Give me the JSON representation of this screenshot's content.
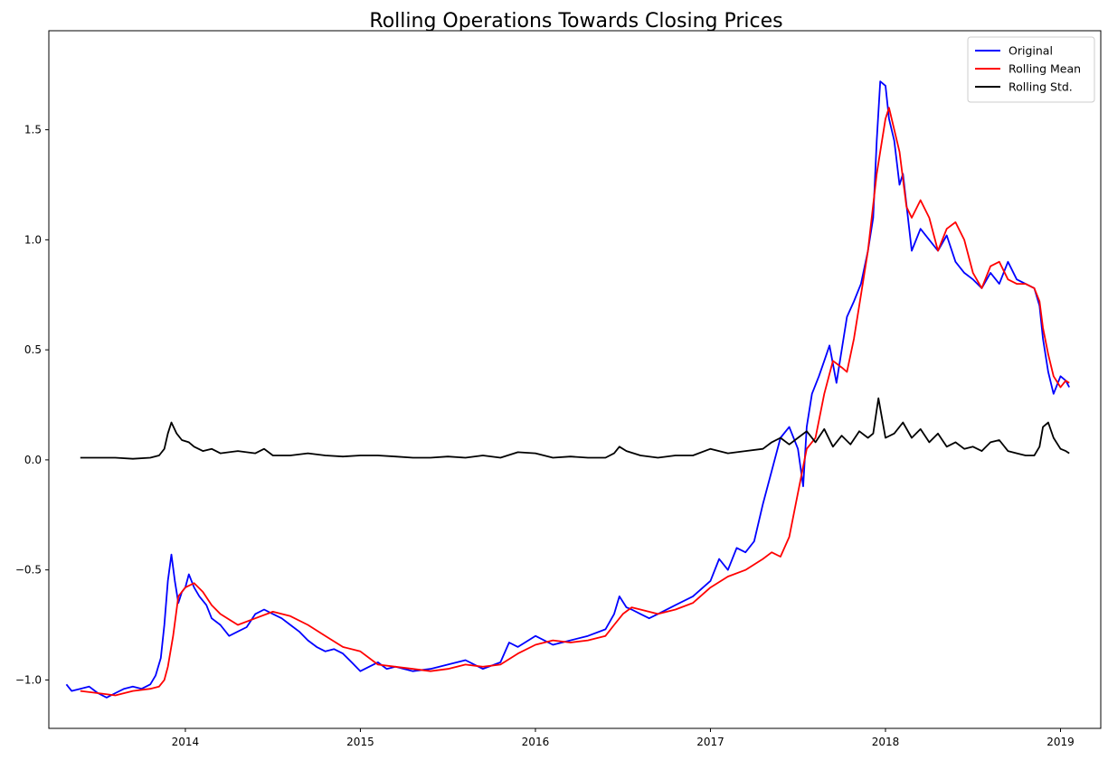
{
  "chart_data": {
    "type": "line",
    "title": "Rolling Operations Towards Closing Prices",
    "xlabel": "",
    "ylabel": "",
    "xlim": [
      2013.22,
      2019.23
    ],
    "ylim": [
      -1.22,
      1.95
    ],
    "x_ticks": [
      2014,
      2015,
      2016,
      2017,
      2018,
      2019
    ],
    "x_tick_labels": [
      "2014",
      "2015",
      "2016",
      "2017",
      "2018",
      "2019"
    ],
    "y_ticks": [
      -1.0,
      -0.5,
      0.0,
      0.5,
      1.0,
      1.5
    ],
    "y_tick_labels": [
      "−1.0",
      "−0.5",
      "0.0",
      "0.5",
      "1.0",
      "1.5"
    ],
    "grid": false,
    "legend": {
      "placement": "top-right"
    },
    "series": [
      {
        "name": "Original",
        "color": "#0000ff",
        "x": [
          2013.32,
          2013.35,
          2013.4,
          2013.45,
          2013.5,
          2013.55,
          2013.6,
          2013.65,
          2013.7,
          2013.75,
          2013.8,
          2013.83,
          2013.86,
          2013.88,
          2013.9,
          2013.92,
          2013.94,
          2013.96,
          2013.98,
          2014.0,
          2014.02,
          2014.05,
          2014.08,
          2014.12,
          2014.15,
          2014.2,
          2014.25,
          2014.3,
          2014.35,
          2014.4,
          2014.45,
          2014.5,
          2014.55,
          2014.6,
          2014.65,
          2014.7,
          2014.75,
          2014.8,
          2014.85,
          2014.9,
          2014.95,
          2015.0,
          2015.05,
          2015.1,
          2015.15,
          2015.2,
          2015.3,
          2015.4,
          2015.5,
          2015.6,
          2015.7,
          2015.8,
          2015.85,
          2015.9,
          2016.0,
          2016.1,
          2016.2,
          2016.3,
          2016.4,
          2016.45,
          2016.48,
          2016.52,
          2016.55,
          2016.6,
          2016.65,
          2016.7,
          2016.8,
          2016.9,
          2017.0,
          2017.05,
          2017.1,
          2017.15,
          2017.2,
          2017.25,
          2017.3,
          2017.35,
          2017.4,
          2017.45,
          2017.5,
          2017.53,
          2017.55,
          2017.58,
          2017.62,
          2017.65,
          2017.68,
          2017.72,
          2017.75,
          2017.78,
          2017.82,
          2017.86,
          2017.9,
          2017.93,
          2017.95,
          2017.97,
          2018.0,
          2018.02,
          2018.05,
          2018.08,
          2018.1,
          2018.15,
          2018.2,
          2018.25,
          2018.3,
          2018.35,
          2018.4,
          2018.45,
          2018.5,
          2018.55,
          2018.6,
          2018.65,
          2018.7,
          2018.75,
          2018.8,
          2018.85,
          2018.88,
          2018.9,
          2018.93,
          2018.96,
          2019.0,
          2019.03,
          2019.05
        ],
        "y": [
          -1.02,
          -1.05,
          -1.04,
          -1.03,
          -1.06,
          -1.08,
          -1.06,
          -1.04,
          -1.03,
          -1.04,
          -1.02,
          -0.98,
          -0.9,
          -0.75,
          -0.55,
          -0.43,
          -0.55,
          -0.65,
          -0.6,
          -0.58,
          -0.52,
          -0.58,
          -0.62,
          -0.66,
          -0.72,
          -0.75,
          -0.8,
          -0.78,
          -0.76,
          -0.7,
          -0.68,
          -0.7,
          -0.72,
          -0.75,
          -0.78,
          -0.82,
          -0.85,
          -0.87,
          -0.86,
          -0.88,
          -0.92,
          -0.96,
          -0.94,
          -0.92,
          -0.95,
          -0.94,
          -0.96,
          -0.95,
          -0.93,
          -0.91,
          -0.95,
          -0.92,
          -0.83,
          -0.85,
          -0.8,
          -0.84,
          -0.82,
          -0.8,
          -0.77,
          -0.7,
          -0.62,
          -0.67,
          -0.68,
          -0.7,
          -0.72,
          -0.7,
          -0.66,
          -0.62,
          -0.55,
          -0.45,
          -0.5,
          -0.4,
          -0.42,
          -0.37,
          -0.2,
          -0.05,
          0.1,
          0.15,
          0.05,
          -0.12,
          0.15,
          0.3,
          0.38,
          0.45,
          0.52,
          0.35,
          0.5,
          0.65,
          0.72,
          0.8,
          0.95,
          1.1,
          1.45,
          1.72,
          1.7,
          1.55,
          1.45,
          1.25,
          1.3,
          0.95,
          1.05,
          1.0,
          0.95,
          1.02,
          0.9,
          0.85,
          0.82,
          0.78,
          0.85,
          0.8,
          0.9,
          0.82,
          0.8,
          0.78,
          0.7,
          0.55,
          0.4,
          0.3,
          0.38,
          0.36,
          0.33
        ],
        "stroke_width": 1.8
      },
      {
        "name": "Rolling Mean",
        "color": "#ff0000",
        "x": [
          2013.4,
          2013.5,
          2013.6,
          2013.7,
          2013.8,
          2013.85,
          2013.88,
          2013.9,
          2013.93,
          2013.96,
          2014.0,
          2014.05,
          2014.1,
          2014.15,
          2014.2,
          2014.3,
          2014.4,
          2014.5,
          2014.6,
          2014.7,
          2014.8,
          2014.9,
          2015.0,
          2015.1,
          2015.2,
          2015.3,
          2015.4,
          2015.5,
          2015.6,
          2015.7,
          2015.8,
          2015.9,
          2016.0,
          2016.1,
          2016.2,
          2016.3,
          2016.4,
          2016.45,
          2016.5,
          2016.55,
          2016.6,
          2016.7,
          2016.8,
          2016.9,
          2017.0,
          2017.1,
          2017.2,
          2017.3,
          2017.35,
          2017.4,
          2017.45,
          2017.5,
          2017.55,
          2017.6,
          2017.65,
          2017.7,
          2017.75,
          2017.78,
          2017.82,
          2017.86,
          2017.9,
          2017.95,
          2018.0,
          2018.02,
          2018.05,
          2018.08,
          2018.12,
          2018.15,
          2018.2,
          2018.25,
          2018.3,
          2018.35,
          2018.4,
          2018.45,
          2018.5,
          2018.55,
          2018.6,
          2018.65,
          2018.7,
          2018.75,
          2018.8,
          2018.85,
          2018.88,
          2018.9,
          2018.93,
          2018.96,
          2019.0,
          2019.03,
          2019.05
        ],
        "y": [
          -1.05,
          -1.06,
          -1.07,
          -1.05,
          -1.04,
          -1.03,
          -1.0,
          -0.94,
          -0.8,
          -0.62,
          -0.58,
          -0.56,
          -0.6,
          -0.66,
          -0.7,
          -0.75,
          -0.72,
          -0.69,
          -0.71,
          -0.75,
          -0.8,
          -0.85,
          -0.87,
          -0.93,
          -0.94,
          -0.95,
          -0.96,
          -0.95,
          -0.93,
          -0.94,
          -0.93,
          -0.88,
          -0.84,
          -0.82,
          -0.83,
          -0.82,
          -0.8,
          -0.75,
          -0.7,
          -0.67,
          -0.68,
          -0.7,
          -0.68,
          -0.65,
          -0.58,
          -0.53,
          -0.5,
          -0.45,
          -0.42,
          -0.44,
          -0.35,
          -0.15,
          0.05,
          0.1,
          0.3,
          0.45,
          0.42,
          0.4,
          0.55,
          0.75,
          0.95,
          1.3,
          1.55,
          1.6,
          1.5,
          1.4,
          1.15,
          1.1,
          1.18,
          1.1,
          0.95,
          1.05,
          1.08,
          1.0,
          0.85,
          0.78,
          0.88,
          0.9,
          0.82,
          0.8,
          0.8,
          0.78,
          0.72,
          0.6,
          0.48,
          0.38,
          0.33,
          0.36,
          0.35
        ],
        "stroke_width": 1.8
      },
      {
        "name": "Rolling Std.",
        "color": "#000000",
        "x": [
          2013.4,
          2013.5,
          2013.6,
          2013.7,
          2013.8,
          2013.85,
          2013.88,
          2013.9,
          2013.92,
          2013.95,
          2013.98,
          2014.02,
          2014.05,
          2014.1,
          2014.15,
          2014.2,
          2014.3,
          2014.4,
          2014.45,
          2014.5,
          2014.6,
          2014.7,
          2014.8,
          2014.9,
          2015.0,
          2015.1,
          2015.2,
          2015.3,
          2015.4,
          2015.5,
          2015.6,
          2015.7,
          2015.8,
          2015.9,
          2016.0,
          2016.1,
          2016.2,
          2016.3,
          2016.4,
          2016.45,
          2016.48,
          2016.52,
          2016.6,
          2016.7,
          2016.8,
          2016.9,
          2017.0,
          2017.1,
          2017.2,
          2017.3,
          2017.35,
          2017.4,
          2017.45,
          2017.5,
          2017.55,
          2017.6,
          2017.65,
          2017.7,
          2017.75,
          2017.8,
          2017.85,
          2017.9,
          2017.93,
          2017.96,
          2018.0,
          2018.05,
          2018.1,
          2018.15,
          2018.2,
          2018.25,
          2018.3,
          2018.35,
          2018.4,
          2018.45,
          2018.5,
          2018.55,
          2018.6,
          2018.65,
          2018.7,
          2018.75,
          2018.8,
          2018.85,
          2018.88,
          2018.9,
          2018.93,
          2018.96,
          2019.0,
          2019.03,
          2019.05
        ],
        "y": [
          0.01,
          0.01,
          0.01,
          0.005,
          0.01,
          0.02,
          0.05,
          0.12,
          0.17,
          0.12,
          0.09,
          0.08,
          0.06,
          0.04,
          0.05,
          0.03,
          0.04,
          0.03,
          0.05,
          0.02,
          0.02,
          0.03,
          0.02,
          0.015,
          0.02,
          0.02,
          0.015,
          0.01,
          0.01,
          0.015,
          0.01,
          0.02,
          0.01,
          0.035,
          0.03,
          0.01,
          0.015,
          0.01,
          0.01,
          0.03,
          0.06,
          0.04,
          0.02,
          0.01,
          0.02,
          0.02,
          0.05,
          0.03,
          0.04,
          0.05,
          0.08,
          0.1,
          0.07,
          0.1,
          0.13,
          0.08,
          0.14,
          0.06,
          0.11,
          0.07,
          0.13,
          0.1,
          0.12,
          0.28,
          0.1,
          0.12,
          0.17,
          0.1,
          0.14,
          0.08,
          0.12,
          0.06,
          0.08,
          0.05,
          0.06,
          0.04,
          0.08,
          0.09,
          0.04,
          0.03,
          0.02,
          0.02,
          0.06,
          0.15,
          0.17,
          0.1,
          0.05,
          0.04,
          0.03
        ],
        "stroke_width": 1.8
      }
    ]
  }
}
